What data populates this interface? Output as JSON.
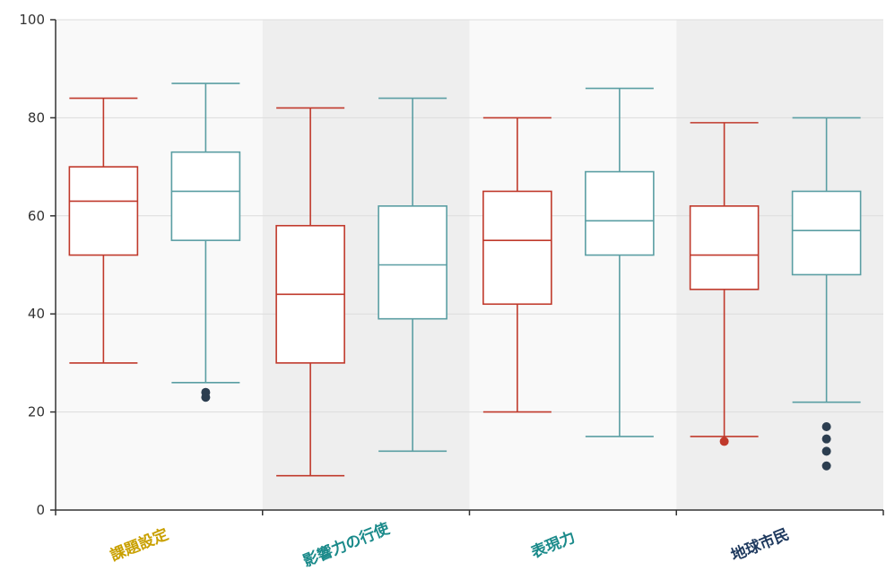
{
  "chart_data": {
    "type": "boxplot",
    "title": "",
    "xlabel": "",
    "ylabel": "",
    "ylim": [
      0,
      100
    ],
    "yticks": [
      0,
      20,
      40,
      60,
      80,
      100
    ],
    "grid": true,
    "categories": [
      "課題設定",
      "影響力の行使",
      "表現力",
      "地球市民"
    ],
    "category_colors": [
      "#c9a000",
      "#1a8a8a",
      "#1a8a8a",
      "#1f3a5f"
    ],
    "band_colors": [
      "#f9f9f9",
      "#eeeeee",
      "#f9f9f9",
      "#eeeeee"
    ],
    "series": [
      {
        "color": "#c0392b",
        "outlier_color": "#c0392b",
        "boxes": [
          {
            "min": 30,
            "q1": 52,
            "median": 63,
            "q3": 70,
            "max": 84,
            "outliers": []
          },
          {
            "min": 7,
            "q1": 30,
            "median": 44,
            "q3": 58,
            "max": 82,
            "outliers": []
          },
          {
            "min": 20,
            "q1": 42,
            "median": 55,
            "q3": 65,
            "max": 80,
            "outliers": []
          },
          {
            "min": 15,
            "q1": 45,
            "median": 52,
            "q3": 62,
            "max": 79,
            "outliers": [
              14
            ]
          }
        ]
      },
      {
        "color": "#5a9ea3",
        "outlier_color": "#2c3e50",
        "boxes": [
          {
            "min": 26,
            "q1": 55,
            "median": 65,
            "q3": 73,
            "max": 87,
            "outliers": [
              24,
              23
            ]
          },
          {
            "min": 12,
            "q1": 39,
            "median": 50,
            "q3": 62,
            "max": 84,
            "outliers": []
          },
          {
            "min": 15,
            "q1": 52,
            "median": 59,
            "q3": 69,
            "max": 86,
            "outliers": []
          },
          {
            "min": 22,
            "q1": 48,
            "median": 57,
            "q3": 65,
            "max": 80,
            "outliers": [
              17,
              14.5,
              12,
              9
            ]
          }
        ]
      }
    ]
  }
}
